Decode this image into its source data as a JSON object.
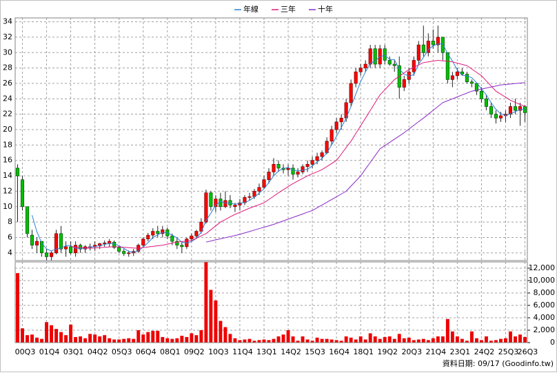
{
  "chart_data": {
    "type": "candlestick",
    "categories": [
      null,
      "00Q3",
      null,
      null,
      null,
      null,
      "01Q4",
      null,
      null,
      null,
      null,
      "03Q1",
      null,
      null,
      null,
      null,
      "04Q2",
      null,
      null,
      null,
      null,
      "05Q3",
      null,
      null,
      null,
      null,
      "06Q4",
      null,
      null,
      null,
      null,
      "08Q1",
      null,
      null,
      null,
      null,
      "09Q2",
      null,
      null,
      null,
      null,
      "10Q3",
      null,
      null,
      null,
      null,
      "11Q4",
      null,
      null,
      null,
      null,
      "13Q1",
      null,
      null,
      null,
      null,
      "14Q2",
      null,
      null,
      null,
      null,
      "15Q3",
      null,
      null,
      null,
      null,
      "16Q4",
      null,
      null,
      null,
      null,
      "18Q1",
      null,
      null,
      null,
      null,
      "19Q2",
      null,
      null,
      null,
      null,
      "20Q3",
      null,
      null,
      null,
      null,
      "21Q4",
      null,
      null,
      null,
      null,
      "23Q1",
      null,
      null,
      null,
      null,
      "24Q2",
      null,
      null,
      null,
      null,
      "25Q3",
      null,
      null,
      null,
      "26Q3"
    ],
    "candles": [
      [
        15,
        15.5,
        8,
        14
      ],
      [
        13.5,
        14,
        9.5,
        10
      ],
      [
        10,
        10,
        6,
        6.5
      ],
      [
        6.3,
        7,
        4.5,
        5
      ],
      [
        5,
        6,
        4,
        5.5
      ],
      [
        5.5,
        5.5,
        3.5,
        4
      ],
      [
        4,
        4.5,
        3,
        3.5
      ],
      [
        3.5,
        4.2,
        3,
        4
      ],
      [
        4,
        7,
        3.8,
        6.5
      ],
      [
        6.5,
        7.5,
        4,
        4.5
      ],
      [
        4.5,
        5.5,
        3.5,
        4.8
      ],
      [
        4.8,
        5.5,
        3.8,
        4
      ],
      [
        4,
        5.5,
        3.5,
        5
      ],
      [
        5,
        5.2,
        4,
        4.5
      ],
      [
        4.5,
        5,
        4,
        4.8
      ],
      [
        4.8,
        5.2,
        4.3,
        4.8
      ],
      [
        4.8,
        5.5,
        4.3,
        5
      ],
      [
        4.9,
        5.3,
        4.5,
        5.2
      ],
      [
        5.2,
        5.6,
        4.8,
        5.3
      ],
      [
        5.2,
        5.8,
        4.8,
        5.5
      ],
      [
        5.4,
        5.6,
        4.5,
        4.7
      ],
      [
        4.7,
        5,
        4,
        4.2
      ],
      [
        4.2,
        4.5,
        3.6,
        3.9
      ],
      [
        3.9,
        4.3,
        3.5,
        4
      ],
      [
        4,
        4.5,
        3.6,
        4.2
      ],
      [
        4.2,
        5.2,
        4,
        5
      ],
      [
        5,
        6,
        4.8,
        5.8
      ],
      [
        5.8,
        6.6,
        5.5,
        6.3
      ],
      [
        6.3,
        7.2,
        5.8,
        6.8
      ],
      [
        6.8,
        7.5,
        6,
        6.5
      ],
      [
        6.5,
        7.5,
        6,
        7
      ],
      [
        7,
        7.3,
        5.8,
        6.2
      ],
      [
        6.2,
        6.5,
        5,
        5.5
      ],
      [
        5.5,
        6,
        4.5,
        5
      ],
      [
        5,
        5.5,
        4,
        4.8
      ],
      [
        4.8,
        6,
        4.5,
        5.8
      ],
      [
        5.8,
        6.5,
        5.5,
        6.2
      ],
      [
        6.2,
        7,
        5.8,
        6.8
      ],
      [
        6.8,
        8.5,
        6.5,
        8
      ],
      [
        8,
        12.2,
        7.8,
        11.8
      ],
      [
        11.8,
        12,
        9.5,
        10
      ],
      [
        10,
        11.5,
        9.3,
        11
      ],
      [
        11,
        11.8,
        9.5,
        10
      ],
      [
        10,
        12,
        9.8,
        10.8
      ],
      [
        10.8,
        11.5,
        9.8,
        10.2
      ],
      [
        10,
        10.5,
        9.3,
        10.2
      ],
      [
        10.2,
        11,
        9.5,
        10.5
      ],
      [
        10.5,
        11.5,
        10.2,
        11.2
      ],
      [
        11.2,
        11.8,
        10.8,
        11.3
      ],
      [
        11.3,
        12.3,
        11,
        12
      ],
      [
        12,
        13,
        11.5,
        12.5
      ],
      [
        12.5,
        14,
        12.3,
        13.5
      ],
      [
        13.5,
        15,
        13,
        14.5
      ],
      [
        14.5,
        16.3,
        14,
        15.5
      ],
      [
        15.5,
        16,
        14.5,
        15
      ],
      [
        15,
        15.5,
        14.3,
        14.8
      ],
      [
        14.8,
        15.5,
        14,
        15
      ],
      [
        15,
        15.5,
        13.5,
        14.2
      ],
      [
        14.2,
        15,
        13.8,
        14.5
      ],
      [
        14.5,
        15.5,
        14.2,
        15.2
      ],
      [
        15.2,
        16,
        14.5,
        15.5
      ],
      [
        15.5,
        16.5,
        15,
        16
      ],
      [
        16,
        17,
        15.5,
        16.5
      ],
      [
        16.5,
        17.3,
        16,
        17
      ],
      [
        17,
        19,
        16.8,
        18.5
      ],
      [
        18.5,
        20.5,
        18,
        20
      ],
      [
        20,
        21.5,
        19.5,
        21
      ],
      [
        21,
        22,
        20,
        21.5
      ],
      [
        21.5,
        24,
        21,
        23.5
      ],
      [
        23.5,
        26.5,
        23,
        26
      ],
      [
        26,
        28,
        25.5,
        27.5
      ],
      [
        27.5,
        28.5,
        27,
        28
      ],
      [
        28,
        29,
        27.5,
        28.5
      ],
      [
        28.5,
        31,
        28,
        30.5
      ],
      [
        30.5,
        31,
        28,
        28.5
      ],
      [
        28.5,
        31,
        28,
        30.5
      ],
      [
        30.5,
        31,
        28.5,
        29
      ],
      [
        29,
        29.5,
        28.3,
        28.5
      ],
      [
        28.5,
        29,
        27.5,
        28.3
      ],
      [
        28.3,
        29.5,
        24,
        25.5
      ],
      [
        25.5,
        27,
        25,
        26.5
      ],
      [
        26.5,
        28,
        26,
        27.5
      ],
      [
        27.5,
        29.5,
        27,
        29
      ],
      [
        29,
        31.5,
        28.5,
        31
      ],
      [
        31,
        33.5,
        29.5,
        30
      ],
      [
        30,
        32.5,
        29.5,
        31.5
      ],
      [
        31.5,
        33,
        30.5,
        31
      ],
      [
        31,
        33.5,
        30,
        32
      ],
      [
        32,
        32,
        29,
        30
      ],
      [
        30,
        30,
        26,
        26.5
      ],
      [
        26.5,
        27.5,
        25.5,
        27
      ],
      [
        27,
        28,
        26.5,
        27.5
      ],
      [
        27.5,
        28,
        27,
        27.2
      ],
      [
        27.2,
        27.5,
        26,
        26.2
      ],
      [
        26.2,
        26.5,
        25.5,
        26
      ],
      [
        26,
        26,
        24.5,
        25
      ],
      [
        25,
        25.5,
        23.5,
        24
      ],
      [
        24,
        24.5,
        22.5,
        23
      ],
      [
        23,
        23.5,
        21.5,
        22
      ],
      [
        22,
        22.5,
        20.8,
        21.5
      ],
      [
        21.5,
        22.3,
        21,
        21.8
      ],
      [
        21.8,
        22.5,
        21,
        22
      ],
      [
        22,
        23.5,
        21.5,
        23
      ],
      [
        23,
        24,
        22,
        22.5
      ],
      [
        22.5,
        23.5,
        20.5,
        23
      ],
      [
        23,
        23.2,
        21,
        22.2
      ]
    ],
    "up_color": "#ff0000",
    "down_color": "#00c000",
    "series": [
      {
        "name": "年線",
        "color": "#2a7fd4",
        "values": [
          null,
          null,
          null,
          8.9,
          6.75,
          5.25,
          4.5,
          4.25,
          4.5,
          4.6,
          4.95,
          4.95,
          4.58,
          4.58,
          4.58,
          4.78,
          4.78,
          4.95,
          5.08,
          5.25,
          5.18,
          4.93,
          4.58,
          4.2,
          4.08,
          4.28,
          4.75,
          5.33,
          5.98,
          6.35,
          6.65,
          6.63,
          6.3,
          5.93,
          5.38,
          5.28,
          5.45,
          5.9,
          6.7,
          8.2,
          9.15,
          10.2,
          10.7,
          10.45,
          10.5,
          10.3,
          10.43,
          10.53,
          10.8,
          11.25,
          11.75,
          12.33,
          13.13,
          14,
          14.63,
          14.95,
          15.08,
          14.75,
          14.63,
          14.73,
          14.85,
          15.3,
          15.8,
          16.25,
          17,
          18,
          19.13,
          20.25,
          21.5,
          23,
          24.63,
          26.25,
          27.5,
          28.63,
          28.88,
          29.5,
          29.63,
          29.13,
          29.08,
          27.83,
          27.2,
          26.95,
          27.13,
          28.5,
          29.38,
          30.38,
          30.88,
          31.13,
          31.13,
          29.88,
          28.88,
          27.75,
          27.05,
          26.98,
          26.73,
          26.1,
          25.3,
          24.5,
          23.5,
          22.63,
          22.08,
          21.83,
          22.08,
          22.33,
          22.63,
          22.68
        ]
      },
      {
        "name": "三年",
        "color": "#e0187a",
        "values": [
          null,
          null,
          null,
          null,
          null,
          null,
          null,
          null,
          null,
          null,
          null,
          4.8,
          4.75,
          4.7,
          4.65,
          4.6,
          4.64,
          4.68,
          4.72,
          4.76,
          4.8,
          4.76,
          4.72,
          4.68,
          4.64,
          4.6,
          4.68,
          4.76,
          4.84,
          4.92,
          5,
          5.13,
          5.27,
          5.4,
          5.47,
          5.53,
          5.6,
          5.9,
          6.2,
          6.5,
          7,
          7.5,
          8,
          8.33,
          8.67,
          9,
          9.27,
          9.53,
          9.8,
          10.03,
          10.27,
          10.5,
          10.93,
          11.37,
          11.8,
          12.2,
          12.6,
          13,
          13.33,
          13.67,
          14,
          14.27,
          14.53,
          14.8,
          15.2,
          15.6,
          16,
          16.83,
          17.67,
          18.5,
          19.5,
          20.5,
          21.5,
          22.5,
          23.5,
          24.5,
          25.17,
          25.83,
          26.5,
          26.93,
          27.37,
          27.8,
          28.1,
          28.4,
          28.7,
          28.8,
          28.9,
          29,
          28.93,
          28.87,
          28.8,
          28.63,
          28.47,
          28.3,
          27.87,
          27.43,
          27,
          26.33,
          25.67,
          25,
          24.6,
          24.2,
          23.8,
          23.53,
          23.27,
          23
        ]
      },
      {
        "name": "十年",
        "color": "#8a28c8",
        "values": [
          null,
          null,
          null,
          null,
          null,
          null,
          null,
          null,
          null,
          null,
          null,
          null,
          null,
          null,
          null,
          null,
          null,
          null,
          null,
          null,
          null,
          null,
          null,
          null,
          null,
          null,
          null,
          null,
          null,
          null,
          null,
          null,
          null,
          null,
          null,
          null,
          null,
          null,
          null,
          5.4,
          5.54,
          5.69,
          5.83,
          5.97,
          6.11,
          6.26,
          6.4,
          6.59,
          6.77,
          6.96,
          7.14,
          7.33,
          7.51,
          7.7,
          7.93,
          8.15,
          8.38,
          8.6,
          8.83,
          9.05,
          9.28,
          9.5,
          9.86,
          10.21,
          10.57,
          10.93,
          11.29,
          11.64,
          12,
          12.67,
          13.33,
          14,
          14.88,
          15.75,
          16.63,
          17.5,
          17.92,
          18.34,
          18.76,
          19.18,
          19.6,
          20.08,
          20.55,
          21.03,
          21.5,
          22,
          22.5,
          23,
          23.5,
          23.75,
          24,
          24.25,
          24.5,
          24.75,
          25,
          25.13,
          25.27,
          25.4,
          25.53,
          25.67,
          25.8,
          25.86,
          25.92,
          25.98,
          26.04,
          26.1
        ]
      }
    ],
    "ylim": [
      3,
      34.5
    ],
    "yticks": [
      4,
      6,
      8,
      10,
      12,
      14,
      16,
      18,
      20,
      22,
      24,
      26,
      28,
      30,
      32,
      34
    ],
    "grid": true,
    "legend": "top",
    "volume": {
      "values": [
        11200,
        2300,
        1200,
        1300,
        800,
        600,
        3300,
        2800,
        2200,
        1700,
        1200,
        2900,
        900,
        1000,
        700,
        1400,
        1300,
        1000,
        1200,
        700,
        500,
        500,
        600,
        700,
        600,
        2000,
        1300,
        1700,
        1900,
        1900,
        900,
        700,
        600,
        700,
        1100,
        900,
        1500,
        1200,
        2000,
        13000,
        8500,
        6800,
        3500,
        2500,
        1400,
        700,
        400,
        500,
        600,
        300,
        400,
        500,
        400,
        600,
        1000,
        1300,
        2000,
        1000,
        300,
        1000,
        500,
        300,
        800,
        600,
        600,
        500,
        400,
        300,
        1000,
        800,
        500,
        1000,
        500,
        1500,
        1000,
        600,
        900,
        1000,
        600,
        1400,
        700,
        800,
        400,
        500,
        600,
        400,
        700,
        1000,
        1000,
        3800,
        1800,
        1000,
        600,
        300,
        1800,
        700,
        400,
        1000,
        300,
        400,
        600,
        700,
        1800,
        1000,
        1300,
        900
      ],
      "color": "#ee0000",
      "ylim": [
        0,
        13000
      ],
      "yticks": [
        0,
        {
          "value": 2000,
          "label": "2,000"
        },
        {
          "value": 4000,
          "label": "4,000"
        },
        {
          "value": 6000,
          "label": "6,000"
        },
        {
          "value": 8000,
          "label": "8,000"
        },
        {
          "value": 10000,
          "label": "10,000"
        },
        {
          "value": 12000,
          "label": "12,000"
        }
      ]
    },
    "source": "資料日期: 09/17  (Goodinfo.tw)"
  }
}
